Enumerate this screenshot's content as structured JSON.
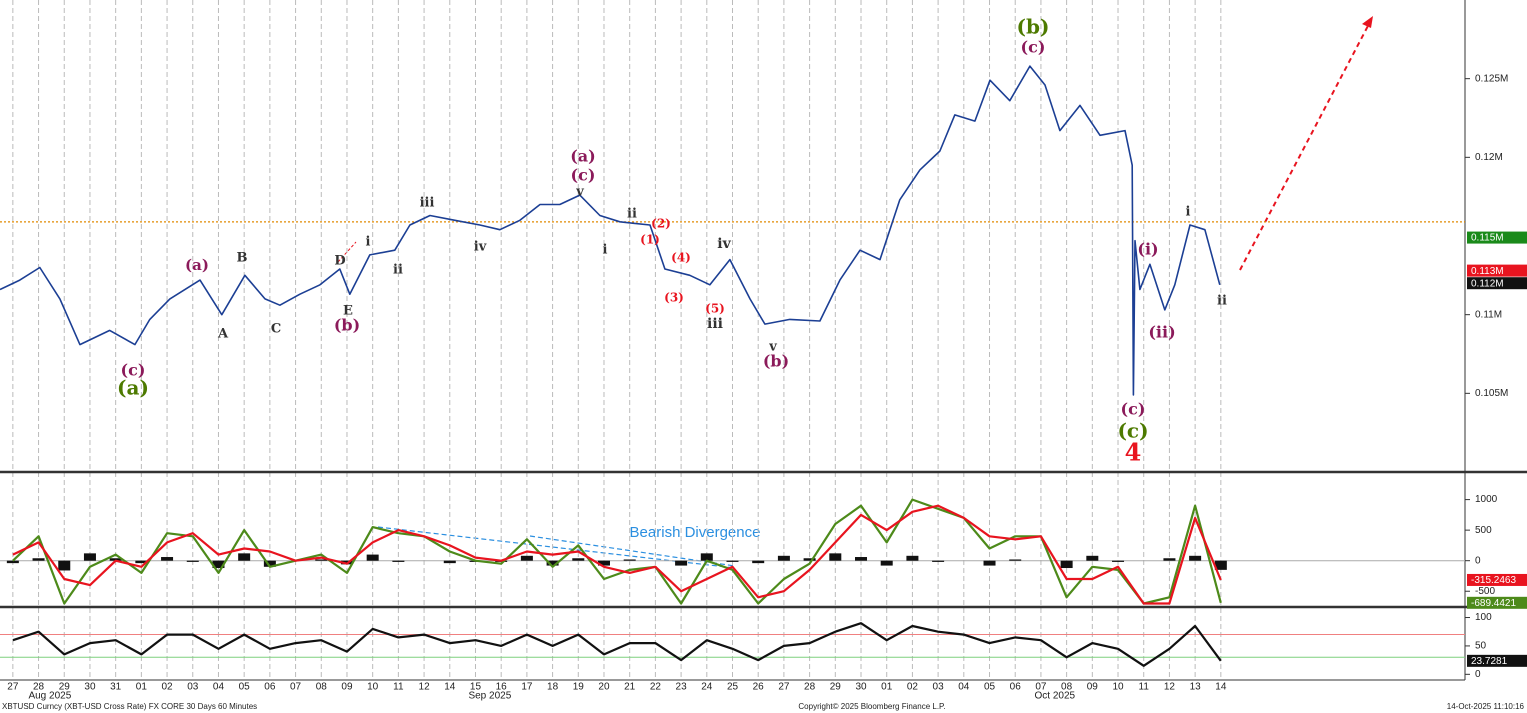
{
  "chart_data": [
    {
      "type": "line",
      "x": [
        -0.5,
        0.27,
        1.05,
        1.83,
        2.61,
        3.77,
        4.75,
        5.33,
        6.11,
        7.28,
        8.13,
        9.03,
        9.81,
        10.39,
        11.17,
        11.95,
        12.72,
        13.11,
        13.89,
        14.86,
        15.45,
        16.23,
        17.2,
        18.17,
        18.95,
        19.73,
        20.51,
        21.28,
        22.06,
        22.84,
        23.62,
        24.79,
        25.37,
        26.34,
        27.12,
        27.9,
        28.68,
        29.26,
        30.23,
        31.4,
        32.18,
        32.96,
        33.74,
        34.51,
        35.29,
        36.07,
        36.65,
        37.43,
        38.02,
        38.79,
        39.57,
        40.16,
        40.74,
        41.52,
        42.3,
        43.27,
        43.55,
        43.6,
        43.66,
        43.85,
        44.24,
        44.82,
        45.21,
        45.8,
        46.38,
        46.96
      ],
      "series": [
        {
          "color": "#1c3f94",
          "values": [
            0.1116,
            0.1122,
            0.113,
            0.111,
            0.1081,
            0.109,
            0.1081,
            0.1097,
            0.111,
            0.1122,
            0.11,
            0.1125,
            0.111,
            0.1106,
            0.1113,
            0.1119,
            0.1129,
            0.1113,
            0.1138,
            0.1141,
            0.1157,
            0.1163,
            0.116,
            0.1157,
            0.1154,
            0.116,
            0.117,
            0.117,
            0.1176,
            0.1163,
            0.1159,
            0.1157,
            0.1129,
            0.1125,
            0.1119,
            0.1135,
            0.111,
            0.1094,
            0.1097,
            0.1096,
            0.1122,
            0.1141,
            0.1135,
            0.1173,
            0.1192,
            0.1204,
            0.1227,
            0.1223,
            0.1249,
            0.1236,
            0.1258,
            0.1246,
            0.1217,
            0.1233,
            0.1214,
            0.1217,
            0.1195,
            0.1049,
            0.1147,
            0.1116,
            0.1132,
            0.1103,
            0.1119,
            0.1157,
            0.1154,
            0.1119
          ]
        }
      ],
      "xlim": [
        -0.5,
        56.5
      ],
      "xticks": [
        {
          "value": 0,
          "label": "27"
        },
        {
          "value": 1,
          "label": "28"
        },
        {
          "value": 2,
          "label": "29"
        },
        {
          "value": 3,
          "label": "30"
        },
        {
          "value": 4,
          "label": "31"
        },
        {
          "value": 5,
          "label": "01"
        },
        {
          "value": 6,
          "label": "02"
        },
        {
          "value": 7,
          "label": "03"
        },
        {
          "value": 8,
          "label": "04"
        },
        {
          "value": 9,
          "label": "05"
        },
        {
          "value": 10,
          "label": "06"
        },
        {
          "value": 11,
          "label": "07"
        },
        {
          "value": 12,
          "label": "08"
        },
        {
          "value": 13,
          "label": "09"
        },
        {
          "value": 14,
          "label": "10"
        },
        {
          "value": 15,
          "label": "11"
        },
        {
          "value": 16,
          "label": "12"
        },
        {
          "value": 17,
          "label": "14"
        },
        {
          "value": 18,
          "label": "15"
        },
        {
          "value": 19,
          "label": "16"
        },
        {
          "value": 20,
          "label": "17"
        },
        {
          "value": 21,
          "label": "18"
        },
        {
          "value": 22,
          "label": "19"
        },
        {
          "value": 23,
          "label": "20"
        },
        {
          "value": 24,
          "label": "21"
        },
        {
          "value": 25,
          "label": "22"
        },
        {
          "value": 26,
          "label": "23"
        },
        {
          "value": 27,
          "label": "24"
        },
        {
          "value": 28,
          "label": "25"
        },
        {
          "value": 29,
          "label": "26"
        },
        {
          "value": 30,
          "label": "27"
        },
        {
          "value": 31,
          "label": "28"
        },
        {
          "value": 32,
          "label": "29"
        },
        {
          "value": 33,
          "label": "30"
        },
        {
          "value": 34,
          "label": "01"
        },
        {
          "value": 35,
          "label": "02"
        },
        {
          "value": 36,
          "label": "03"
        },
        {
          "value": 37,
          "label": "04"
        },
        {
          "value": 38,
          "label": "05"
        },
        {
          "value": 39,
          "label": "06"
        },
        {
          "value": 40,
          "label": "07"
        },
        {
          "value": 41,
          "label": "08"
        },
        {
          "value": 42,
          "label": "09"
        },
        {
          "value": 43,
          "label": "10"
        },
        {
          "value": 44,
          "label": "11"
        },
        {
          "value": 45,
          "label": "12"
        },
        {
          "value": 46,
          "label": "13"
        },
        {
          "value": 47,
          "label": "14"
        }
      ],
      "month_labels": [
        {
          "value": 1.44,
          "label": "Aug 2025"
        },
        {
          "value": 18.56,
          "label": "Sep 2025"
        },
        {
          "value": 40.54,
          "label": "Oct 2025"
        }
      ],
      "ylim": [
        0.1,
        0.13
      ],
      "yticks": [
        {
          "value": 0.105,
          "label": "0.105M"
        },
        {
          "value": 0.11,
          "label": "0.11M"
        },
        {
          "value": 0.12,
          "label": "0.12M"
        },
        {
          "value": 0.125,
          "label": "0.125M"
        }
      ],
      "hline": {
        "value": 0.1159,
        "color": "#e08a00"
      },
      "last_values": [
        {
          "value": 0.1149,
          "label": "0.115M",
          "color": "#1a8a1a"
        },
        {
          "value": 0.1128,
          "label": "0.113M",
          "color": "#e8141f"
        },
        {
          "value": 0.112,
          "label": "0.112M",
          "color": "#111111"
        }
      ],
      "annotations": [
        {
          "text": "(b)",
          "color": "#4d7a00"
        },
        {
          "text": "(c)",
          "color": "#8b1a5a"
        },
        {
          "text": "(a)",
          "color": "#8b1a5a"
        },
        {
          "text": "(c)",
          "color": "#8b1a5a"
        },
        {
          "text": "v",
          "color": "#333333"
        },
        {
          "text": "iii",
          "color": "#333333"
        },
        {
          "text": "ii",
          "color": "#333333"
        },
        {
          "text": "(2)",
          "color": "#e8141f"
        },
        {
          "text": "(1)",
          "color": "#e8141f"
        },
        {
          "text": "i",
          "color": "#333333"
        },
        {
          "text": "iv",
          "color": "#333333"
        },
        {
          "text": "(4)",
          "color": "#e8141f"
        },
        {
          "text": "iv",
          "color": "#333333"
        },
        {
          "text": "(3)",
          "color": "#e8141f"
        },
        {
          "text": "(5)",
          "color": "#e8141f"
        },
        {
          "text": "iii",
          "color": "#333333"
        },
        {
          "text": "v",
          "color": "#333333"
        },
        {
          "text": "(b)",
          "color": "#8b1a5a"
        },
        {
          "text": "(a)",
          "color": "#8b1a5a"
        },
        {
          "text": "B",
          "color": "#333333"
        },
        {
          "text": "D",
          "color": "#333333"
        },
        {
          "text": "i",
          "color": "#333333"
        },
        {
          "text": "ii",
          "color": "#333333"
        },
        {
          "text": "E",
          "color": "#333333"
        },
        {
          "text": "(b)",
          "color": "#8b1a5a"
        },
        {
          "text": "A",
          "color": "#333333"
        },
        {
          "text": "C",
          "color": "#333333"
        },
        {
          "text": "(c)",
          "color": "#8b1a5a"
        },
        {
          "text": "(a)",
          "color": "#4d7a00"
        },
        {
          "text": "(c)",
          "color": "#8b1a5a"
        },
        {
          "text": "(c)",
          "color": "#4d7a00"
        },
        {
          "text": "4",
          "color": "#e8141f"
        },
        {
          "text": "(i)",
          "color": "#8b1a5a"
        },
        {
          "text": "i",
          "color": "#333333"
        },
        {
          "text": "(ii)",
          "color": "#8b1a5a"
        },
        {
          "text": "ii",
          "color": "#333333"
        }
      ]
    },
    {
      "type": "line",
      "x": [
        0,
        1,
        2,
        3,
        4,
        5,
        6,
        7,
        8,
        9,
        10,
        11,
        12,
        13,
        14,
        15,
        16,
        17,
        18,
        19,
        20,
        21,
        22,
        23,
        24,
        25,
        26,
        27,
        28,
        29,
        30,
        31,
        32,
        33,
        34,
        35,
        36,
        37,
        38,
        39,
        40,
        41,
        42,
        43,
        44,
        45,
        46,
        47
      ],
      "series": [
        {
          "color": "#4d8a1a",
          "values": [
            0,
            400,
            -700,
            -100,
            100,
            -200,
            450,
            400,
            -200,
            500,
            -100,
            0,
            100,
            -200,
            550,
            450,
            400,
            150,
            0,
            -50,
            350,
            -100,
            250,
            -300,
            -150,
            -100,
            -700,
            0,
            -150,
            -700,
            -300,
            -50,
            600,
            900,
            300,
            1000,
            850,
            700,
            200,
            400,
            400,
            -600,
            -100,
            -150,
            -700,
            -600,
            900,
            -689.4421
          ]
        },
        {
          "color": "#e8141f",
          "values": [
            100,
            300,
            -300,
            -400,
            0,
            -100,
            300,
            450,
            100,
            200,
            150,
            0,
            50,
            -50,
            300,
            500,
            400,
            250,
            50,
            0,
            150,
            100,
            150,
            -100,
            -200,
            -100,
            -500,
            -300,
            -100,
            -600,
            -500,
            -150,
            300,
            750,
            500,
            800,
            900,
            700,
            400,
            350,
            400,
            -300,
            -300,
            -100,
            -700,
            -700,
            700,
            -315.2463
          ]
        }
      ],
      "histogram": {
        "color": "#111111",
        "values": [
          -40,
          40,
          -160,
          120,
          40,
          -40,
          60,
          -20,
          -120,
          120,
          -100,
          0,
          20,
          -60,
          100,
          -20,
          0,
          -40,
          -20,
          -20,
          80,
          -80,
          40,
          -80,
          20,
          0,
          -80,
          120,
          -20,
          -40,
          80,
          40,
          120,
          60,
          -80,
          80,
          -20,
          0,
          -80,
          20,
          0,
          -120,
          80,
          -20,
          0,
          40,
          80,
          -150
        ]
      },
      "ylim": [
        -758,
        1419
      ],
      "yticks": [
        1000,
        500,
        0,
        -500
      ],
      "annotation": "Bearish Divergence",
      "last_values": [
        {
          "value": -315.2463,
          "color": "#e8141f"
        },
        {
          "value": -689.4421,
          "color": "#4d8a1a"
        }
      ]
    },
    {
      "type": "line",
      "x": [
        0,
        1,
        2,
        3,
        4,
        5,
        6,
        7,
        8,
        9,
        10,
        11,
        12,
        13,
        14,
        15,
        16,
        17,
        18,
        19,
        20,
        21,
        22,
        23,
        24,
        25,
        26,
        27,
        28,
        29,
        30,
        31,
        32,
        33,
        34,
        35,
        36,
        37,
        38,
        39,
        40,
        41,
        42,
        43,
        44,
        45,
        46,
        47
      ],
      "series": [
        {
          "color": "#111111",
          "values": [
            60,
            75,
            35,
            55,
            60,
            35,
            70,
            70,
            45,
            70,
            45,
            55,
            60,
            40,
            80,
            65,
            70,
            55,
            60,
            50,
            70,
            50,
            70,
            35,
            55,
            55,
            25,
            60,
            45,
            25,
            50,
            55,
            75,
            90,
            60,
            85,
            75,
            70,
            55,
            65,
            60,
            30,
            55,
            45,
            15,
            45,
            85,
            23.7281
          ]
        }
      ],
      "ylim": [
        -10,
        115
      ],
      "yticks": [
        100,
        50,
        0
      ],
      "ref_lines": [
        {
          "value": 70,
          "color": "#f08080"
        },
        {
          "value": 30,
          "color": "#7fd07f"
        }
      ],
      "last_values": [
        {
          "value": 23.7281,
          "color": "#111111"
        }
      ]
    }
  ],
  "footer": {
    "source": "XBTUSD Curncy (XBT-USD Cross Rate) FX CORE 30 Days 60 Minutes",
    "copyright": "Copyright© 2025 Bloomberg Finance L.P.",
    "timestamp": "14-Oct-2025 11:10:16"
  }
}
